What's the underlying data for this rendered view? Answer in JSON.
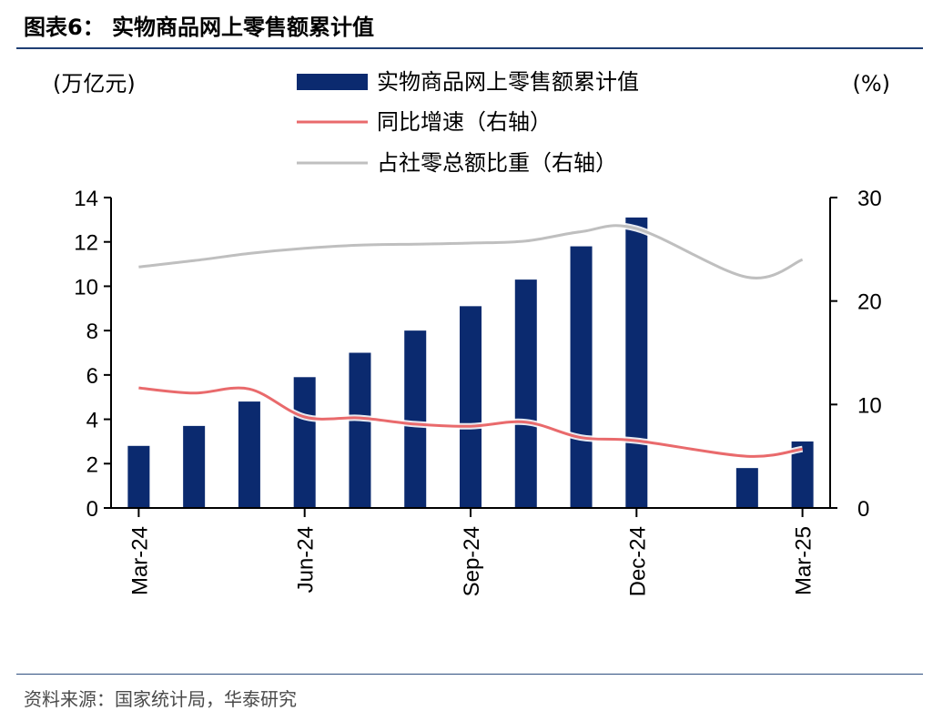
{
  "title": "图表6：  实物商品网上零售额累计值",
  "source": "资料来源：国家统计局，华泰研究",
  "chart_data": {
    "type": "bar",
    "left_unit": "(万亿元)",
    "right_unit": "(%)",
    "legend_position": "top",
    "grid": false,
    "left_axis": {
      "min": 0,
      "max": 14,
      "ticks": [
        "0",
        "2",
        "4",
        "6",
        "8",
        "10",
        "12",
        "14"
      ]
    },
    "right_axis": {
      "min": 0,
      "max": 30,
      "ticks": [
        "0",
        "10",
        "20",
        "30"
      ]
    },
    "x_tick_labels": [
      "Mar-24",
      "Jun-24",
      "Sep-24",
      "Dec-24",
      "Mar-25"
    ],
    "months": [
      "2024-03",
      "2024-04",
      "2024-05",
      "2024-06",
      "2024-07",
      "2024-08",
      "2024-09",
      "2024-10",
      "2024-11",
      "2024-12",
      "2025-01",
      "2025-02",
      "2025-03"
    ],
    "series": [
      {
        "name": "实物商品网上零售额累计值",
        "type": "bar",
        "axis": "left",
        "color": "#0b2a6f",
        "values": [
          2.8,
          3.7,
          4.8,
          5.9,
          7.0,
          8.0,
          9.1,
          10.3,
          11.8,
          13.1,
          null,
          1.8,
          3.0
        ]
      },
      {
        "name": "同比增速（右轴）",
        "type": "line",
        "axis": "right",
        "color": "#e96a6c",
        "values": [
          11.6,
          11.1,
          11.5,
          8.8,
          8.7,
          8.1,
          7.9,
          8.3,
          6.8,
          6.5,
          null,
          5.0,
          5.7
        ]
      },
      {
        "name": "占社零总额比重（右轴）",
        "type": "line",
        "axis": "right",
        "color": "#bfbfbf",
        "values": [
          23.3,
          23.9,
          24.6,
          25.1,
          25.4,
          25.5,
          25.6,
          25.8,
          26.7,
          27.0,
          null,
          22.3,
          24.0
        ]
      }
    ]
  }
}
